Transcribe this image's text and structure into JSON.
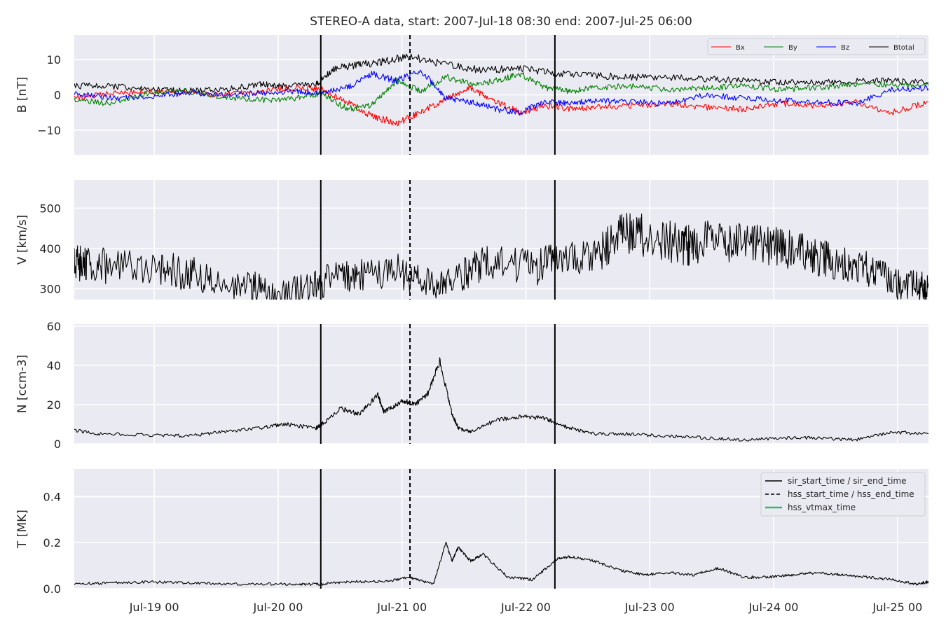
{
  "figure": {
    "title": "STEREO-A data, start: 2007-Jul-18 08:30  end: 2007-Jul-25 06:00",
    "background": "#ffffff",
    "panel_bg": "#EAEAF2",
    "grid_color": "#ffffff"
  },
  "chart_data": [
    {
      "type": "line",
      "ylabel": "B [nT]",
      "ylim": [
        -17,
        17
      ],
      "yticks": [
        10,
        0,
        -10
      ],
      "ytick_labels": [
        "10",
        "0",
        "−10"
      ],
      "grid": true,
      "legend": {
        "position": "top-right",
        "entries": [
          {
            "name": "Bx",
            "color": "#ff0000",
            "style": "solid"
          },
          {
            "name": "By",
            "color": "#008000",
            "style": "solid"
          },
          {
            "name": "Bz",
            "color": "#0000ff",
            "style": "solid"
          },
          {
            "name": "Btotal",
            "color": "#000000",
            "style": "solid"
          }
        ]
      },
      "series": [
        {
          "name": "Btotal",
          "color": "#000000",
          "x": [
            0,
            0.3,
            0.6,
            0.9,
            1.2,
            1.5,
            1.7,
            1.95,
            2.1,
            2.3,
            2.5,
            2.7,
            3.0,
            3.3,
            3.6,
            3.9,
            4.2,
            4.5,
            4.8,
            5.1,
            5.4,
            5.7,
            6.0,
            6.3,
            6.6,
            6.9
          ],
          "y": [
            2.5,
            2.5,
            1.5,
            1.2,
            1.5,
            3.0,
            2.5,
            3.0,
            7.5,
            8.5,
            9.5,
            11.0,
            8.5,
            7.0,
            7.5,
            6.0,
            5.5,
            5.0,
            5.0,
            4.5,
            4.0,
            3.5,
            3.5,
            3.8,
            4.0,
            3.5
          ]
        },
        {
          "name": "Bx",
          "color": "#ff0000",
          "x": [
            0,
            0.3,
            0.6,
            0.9,
            1.2,
            1.5,
            1.8,
            2.0,
            2.2,
            2.4,
            2.6,
            2.8,
            3.0,
            3.2,
            3.4,
            3.6,
            3.8,
            4.0,
            4.2,
            4.5,
            4.8,
            5.1,
            5.4,
            5.7,
            6.0,
            6.3,
            6.6,
            6.9
          ],
          "y": [
            -1.0,
            0.5,
            1.0,
            0.5,
            0.0,
            1.0,
            2.0,
            1.5,
            -2.0,
            -6.0,
            -8.0,
            -5.0,
            -1.0,
            2.0,
            -2.0,
            -5.0,
            -3.0,
            -4.0,
            -3.5,
            -3.0,
            -2.5,
            -3.5,
            -4.0,
            -2.5,
            -3.0,
            -2.0,
            -5.0,
            -2.0
          ]
        },
        {
          "name": "By",
          "color": "#008000",
          "x": [
            0,
            0.3,
            0.6,
            0.9,
            1.2,
            1.5,
            1.8,
            2.0,
            2.2,
            2.4,
            2.6,
            2.8,
            3.0,
            3.2,
            3.4,
            3.6,
            3.8,
            4.0,
            4.2,
            4.5,
            4.8,
            5.1,
            5.4,
            5.7,
            6.0,
            6.3,
            6.6,
            6.9
          ],
          "y": [
            -1.5,
            -2.5,
            0.5,
            1.0,
            -0.5,
            -1.5,
            -1.0,
            0.5,
            -4.0,
            -3.0,
            4.0,
            1.0,
            5.0,
            3.0,
            4.0,
            6.0,
            2.0,
            1.0,
            2.0,
            2.5,
            1.5,
            2.0,
            2.5,
            1.5,
            2.0,
            3.0,
            3.0,
            2.5
          ]
        },
        {
          "name": "Bz",
          "color": "#0000ff",
          "x": [
            0,
            0.3,
            0.6,
            0.9,
            1.2,
            1.5,
            1.8,
            2.0,
            2.2,
            2.4,
            2.6,
            2.8,
            3.0,
            3.2,
            3.4,
            3.6,
            3.8,
            4.0,
            4.2,
            4.5,
            4.8,
            5.1,
            5.4,
            5.7,
            6.0,
            6.3,
            6.6,
            6.9
          ],
          "y": [
            0.5,
            -1.0,
            -0.5,
            0.5,
            0.0,
            0.5,
            1.0,
            0.5,
            2.0,
            6.0,
            4.0,
            7.0,
            -1.0,
            -2.0,
            -4.0,
            -5.0,
            -2.0,
            -2.5,
            -1.5,
            -2.0,
            -2.5,
            0.0,
            -1.0,
            -1.5,
            -2.0,
            -2.5,
            1.5,
            2.0
          ]
        }
      ]
    },
    {
      "type": "line",
      "ylabel": "V [km/s]",
      "ylim": [
        273,
        570
      ],
      "yticks": [
        500,
        400,
        300
      ],
      "ytick_labels": [
        "500",
        "400",
        "300"
      ],
      "grid": true,
      "series": [
        {
          "name": "V",
          "color": "#000000",
          "x": [
            0,
            0.1,
            0.3,
            0.7,
            0.9,
            1.1,
            1.4,
            1.6,
            1.9,
            2.1,
            2.3,
            2.6,
            2.8,
            3.0,
            3.2,
            3.4,
            3.7,
            3.9,
            4.2,
            4.4,
            4.6,
            4.9,
            5.0,
            5.2,
            5.4,
            5.6,
            5.8,
            6.0,
            6.2,
            6.4,
            6.6,
            6.8,
            6.9
          ],
          "y": [
            368,
            358,
            355,
            350,
            340,
            325,
            305,
            298,
            300,
            330,
            335,
            345,
            315,
            310,
            345,
            375,
            350,
            370,
            380,
            440,
            430,
            410,
            405,
            425,
            410,
            405,
            395,
            380,
            365,
            350,
            315,
            305,
            305
          ]
        }
      ]
    },
    {
      "type": "line",
      "ylabel": "N [ccm-3]",
      "ylim": [
        0,
        61
      ],
      "yticks": [
        60,
        40,
        20,
        0
      ],
      "ytick_labels": [
        "60",
        "40",
        "20",
        "0"
      ],
      "grid": true,
      "series": [
        {
          "name": "N",
          "color": "#000000",
          "x": [
            0,
            0.2,
            0.6,
            0.9,
            1.2,
            1.5,
            1.7,
            1.95,
            2.0,
            2.15,
            2.3,
            2.45,
            2.5,
            2.65,
            2.75,
            2.85,
            2.95,
            3.05,
            3.1,
            3.2,
            3.4,
            3.6,
            3.8,
            4.0,
            4.2,
            4.5,
            4.8,
            5.1,
            5.4,
            5.7,
            6.0,
            6.3,
            6.6,
            6.9
          ],
          "y": [
            7,
            5,
            4.5,
            4,
            6,
            8,
            10,
            8,
            10,
            18,
            15,
            25,
            16,
            22,
            20,
            25,
            42,
            15,
            8,
            6,
            12,
            14,
            13,
            8,
            5,
            5,
            4,
            3,
            2,
            3,
            3,
            2,
            6,
            5
          ]
        }
      ]
    },
    {
      "type": "line",
      "ylabel": "T [MK]",
      "ylim": [
        0,
        0.52
      ],
      "yticks": [
        0.4,
        0.2,
        0.0
      ],
      "ytick_labels": [
        "0.4",
        "0.2",
        "0.0"
      ],
      "grid": true,
      "legend": {
        "position": "top-right",
        "entries": [
          {
            "name": "sir_start_time / sir_end_time",
            "color": "#000000",
            "style": "solid"
          },
          {
            "name": "hss_start_time / hss_end_time",
            "color": "#000000",
            "style": "dashed"
          },
          {
            "name": "hss_vtmax_time",
            "color": "#3cb371",
            "style": "solid"
          }
        ]
      },
      "series": [
        {
          "name": "T",
          "color": "#000000",
          "x": [
            0,
            0.3,
            0.6,
            0.9,
            1.2,
            1.5,
            1.8,
            1.99,
            2.2,
            2.5,
            2.7,
            2.9,
            3.0,
            3.05,
            3.1,
            3.2,
            3.3,
            3.5,
            3.7,
            3.9,
            4.0,
            4.2,
            4.4,
            4.6,
            4.8,
            5.0,
            5.2,
            5.4,
            5.6,
            5.8,
            6.0,
            6.2,
            6.4,
            6.6,
            6.8,
            6.9
          ],
          "y": [
            0.02,
            0.025,
            0.03,
            0.025,
            0.02,
            0.02,
            0.02,
            0.02,
            0.03,
            0.03,
            0.05,
            0.02,
            0.2,
            0.12,
            0.18,
            0.12,
            0.15,
            0.05,
            0.04,
            0.13,
            0.14,
            0.12,
            0.08,
            0.06,
            0.07,
            0.06,
            0.09,
            0.05,
            0.05,
            0.06,
            0.07,
            0.06,
            0.05,
            0.04,
            0.02,
            0.03
          ]
        }
      ]
    }
  ],
  "xaxis": {
    "tick_positions": [
      0.6458,
      1.6458,
      2.6458,
      3.6458,
      4.6458,
      5.6458,
      6.6458
    ],
    "tick_labels": [
      "Jul-19 00",
      "Jul-20 00",
      "Jul-21 00",
      "Jul-22 00",
      "Jul-23 00",
      "Jul-24 00",
      "Jul-25 00"
    ],
    "range": [
      0,
      6.8958
    ]
  },
  "event_lines": {
    "sir_start_time": 1.99,
    "hss_start_time": 2.71,
    "sir_end_time": 3.88
  }
}
